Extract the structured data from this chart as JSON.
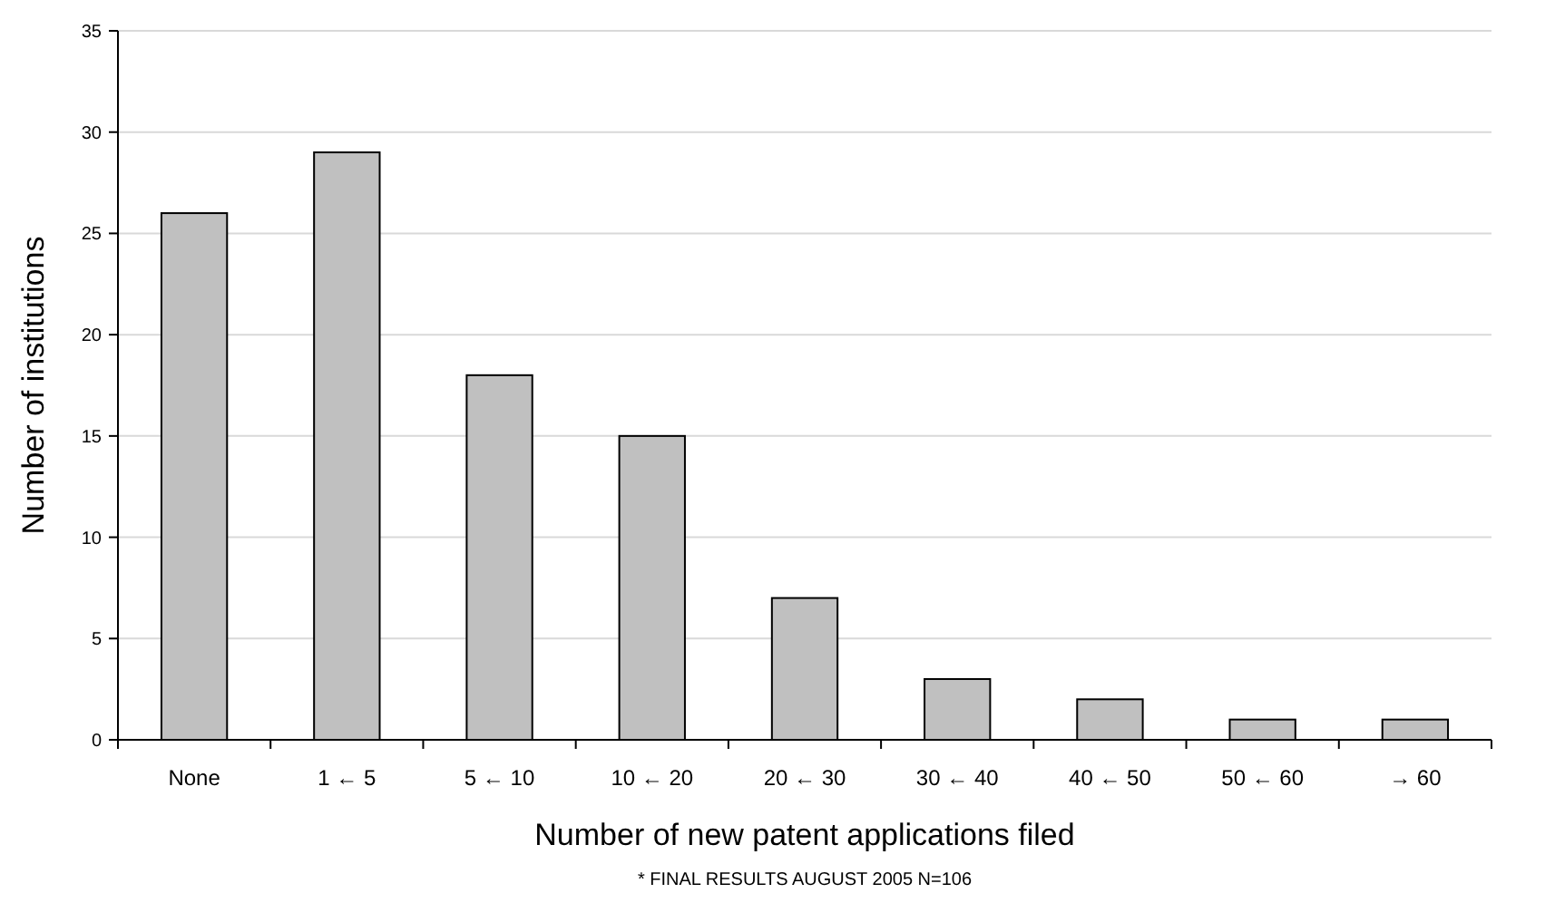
{
  "chart_data": {
    "type": "bar",
    "xlabel": "Number of new patent applications filed",
    "ylabel": "Number of institutions",
    "categories": [
      "None",
      "1 ← 5",
      "5 ← 10",
      "10 ← 20",
      "20 ← 30",
      "30 ← 40",
      "40 ← 50",
      "50 ← 60",
      "→ 60"
    ],
    "values": [
      26,
      29,
      18,
      15,
      7,
      3,
      2,
      1,
      1
    ],
    "color": "#c0c0c0",
    "ylim": [
      0,
      35
    ],
    "yticks": [
      0,
      5,
      10,
      15,
      20,
      25,
      30,
      35
    ],
    "grid": "y",
    "annotations": [
      "* FINAL RESULTS AUGUST 2005 N=106"
    ]
  }
}
